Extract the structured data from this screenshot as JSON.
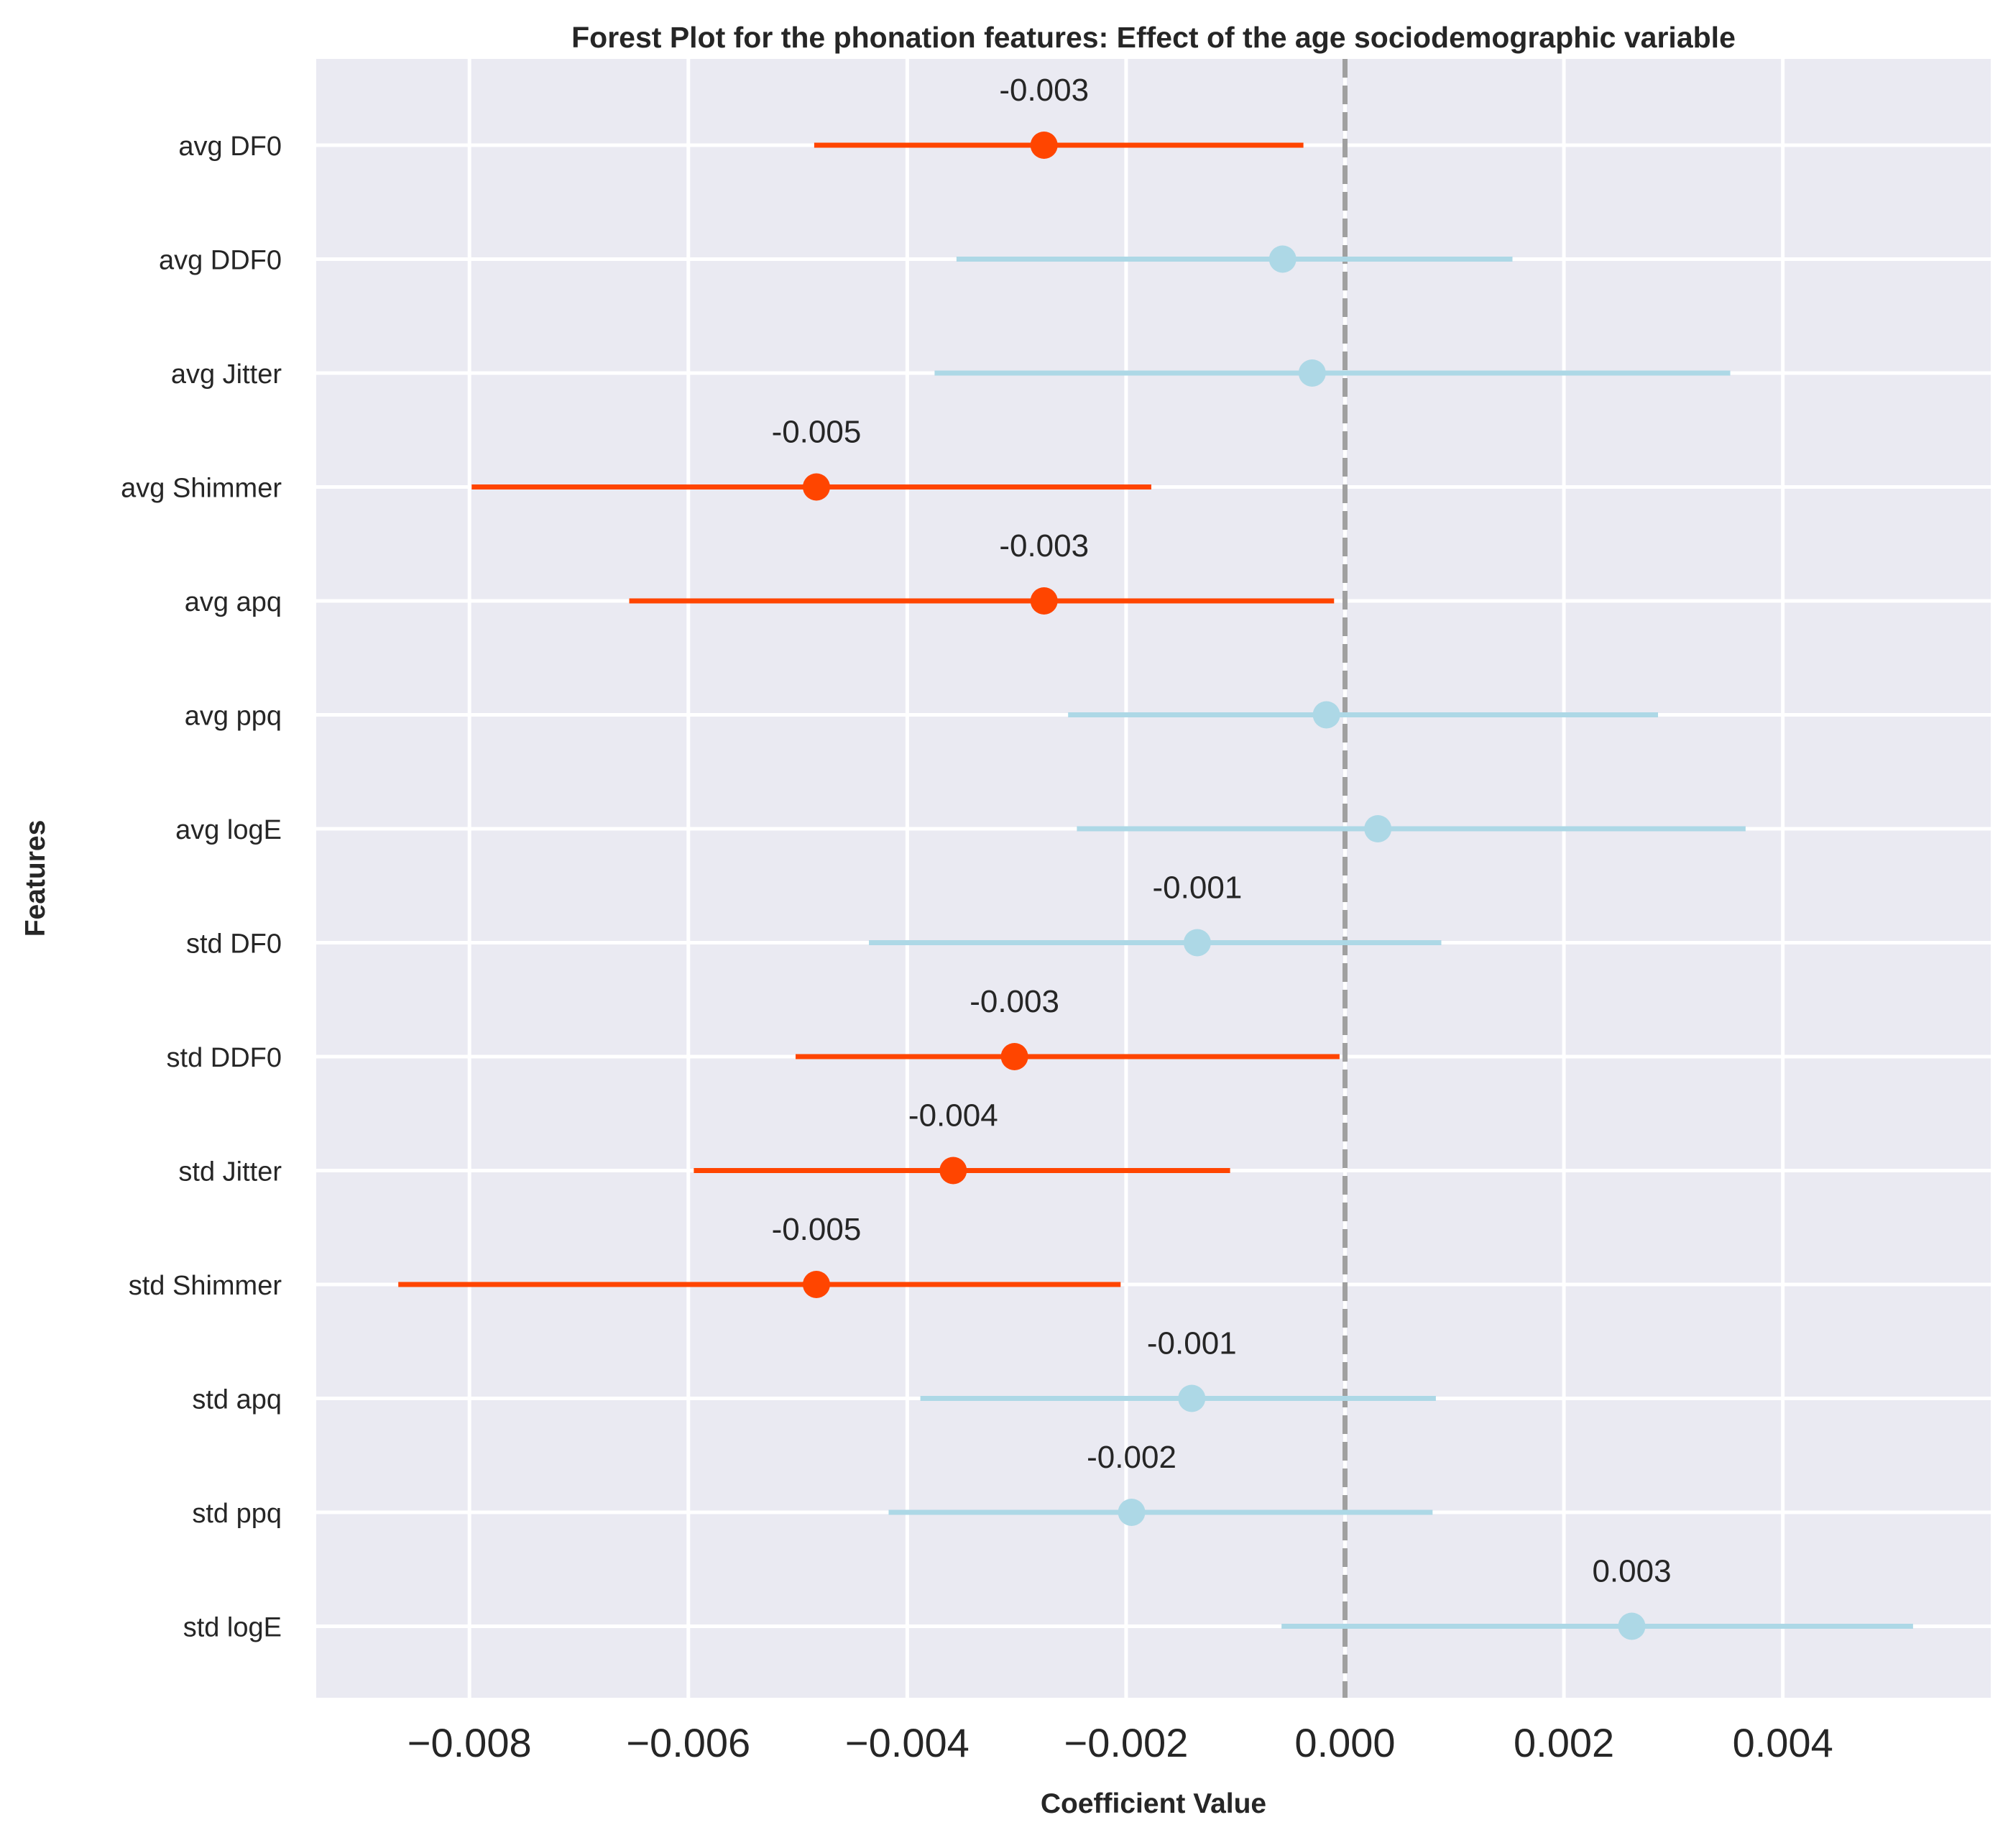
{
  "colors": {
    "background": "#EAEAF2",
    "grid": "#FFFFFF",
    "significant": "#FF4500",
    "non_significant": "#ADD8E6",
    "reference_line": "#A0A0A0",
    "text": "#262626"
  },
  "chart_data": {
    "type": "forest",
    "title": "Forest Plot for the phonation features: Effect of the age sociodemographic variable",
    "xlabel": "Coefficient Value",
    "ylabel": "Features",
    "xlim": [
      -0.0094,
      0.0059
    ],
    "xticks": [
      -0.008,
      -0.006,
      -0.004,
      -0.002,
      0.0,
      0.002,
      0.004
    ],
    "xtick_labels": [
      "−0.008",
      "−0.006",
      "−0.004",
      "−0.002",
      "0.000",
      "0.002",
      "0.004"
    ],
    "reference_line": 0.0,
    "grid": true,
    "features": [
      {
        "name": "avg DF0",
        "estimate": -0.00275,
        "ci_low": -0.00485,
        "ci_high": -0.00038,
        "significant": true,
        "annotation": "-0.003"
      },
      {
        "name": "avg DDF0",
        "estimate": -0.00057,
        "ci_low": -0.00355,
        "ci_high": 0.00153,
        "significant": false,
        "annotation": ""
      },
      {
        "name": "avg Jitter",
        "estimate": -0.0003,
        "ci_low": -0.00375,
        "ci_high": 0.00352,
        "significant": false,
        "annotation": ""
      },
      {
        "name": "avg Shimmer",
        "estimate": -0.00483,
        "ci_low": -0.00798,
        "ci_high": -0.00177,
        "significant": true,
        "annotation": "-0.005"
      },
      {
        "name": "avg apq",
        "estimate": -0.00275,
        "ci_low": -0.00654,
        "ci_high": -0.0001,
        "significant": true,
        "annotation": "-0.003"
      },
      {
        "name": "avg ppq",
        "estimate": -0.00017,
        "ci_low": -0.00253,
        "ci_high": 0.00286,
        "significant": false,
        "annotation": ""
      },
      {
        "name": "avg logE",
        "estimate": 0.0003,
        "ci_low": -0.00245,
        "ci_high": 0.00366,
        "significant": false,
        "annotation": ""
      },
      {
        "name": "std DF0",
        "estimate": -0.00135,
        "ci_low": -0.00435,
        "ci_high": 0.00088,
        "significant": false,
        "annotation": "-0.001"
      },
      {
        "name": "std DDF0",
        "estimate": -0.00302,
        "ci_low": -0.00502,
        "ci_high": -5e-05,
        "significant": true,
        "annotation": "-0.003"
      },
      {
        "name": "std Jitter",
        "estimate": -0.00358,
        "ci_low": -0.00595,
        "ci_high": -0.00105,
        "significant": true,
        "annotation": "-0.004"
      },
      {
        "name": "std Shimmer",
        "estimate": -0.00483,
        "ci_low": -0.00865,
        "ci_high": -0.00205,
        "significant": true,
        "annotation": "-0.005"
      },
      {
        "name": "std apq",
        "estimate": -0.0014,
        "ci_low": -0.00388,
        "ci_high": 0.00083,
        "significant": false,
        "annotation": "-0.001"
      },
      {
        "name": "std ppq",
        "estimate": -0.00195,
        "ci_low": -0.00417,
        "ci_high": 0.0008,
        "significant": false,
        "annotation": "-0.002"
      },
      {
        "name": "std logE",
        "estimate": 0.00262,
        "ci_low": -0.00058,
        "ci_high": 0.00519,
        "significant": false,
        "annotation": "0.003"
      }
    ]
  }
}
